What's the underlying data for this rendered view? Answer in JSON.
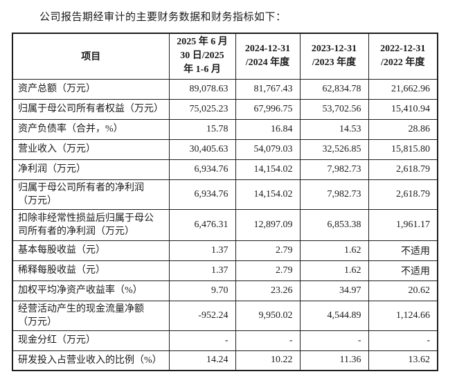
{
  "page": {
    "title": "公司报告期经审计的主要财务数据和财务指标如下："
  },
  "colors": {
    "text": "#1a1a1a",
    "border": "#1c1c1c",
    "background": "#ffffff"
  },
  "table": {
    "header": {
      "item_label": "项目",
      "periods": [
        {
          "lines": [
            "2025 年 6 月",
            "30 日/2025",
            "年 1-6 月"
          ]
        },
        {
          "lines": [
            "2024-12-31",
            "/2024 年度"
          ]
        },
        {
          "lines": [
            "2023-12-31",
            "/2023 年度"
          ]
        },
        {
          "lines": [
            "2022-12-31",
            "/2022 年度"
          ]
        }
      ]
    },
    "rows": [
      {
        "label": "资产总额（万元）",
        "values": [
          "89,078.63",
          "81,767.43",
          "62,834.78",
          "21,662.96"
        ]
      },
      {
        "label": "归属于母公司所有者权益（万元）",
        "values": [
          "75,025.23",
          "67,996.75",
          "53,702.56",
          "15,410.94"
        ]
      },
      {
        "label": "资产负债率（合并，%）",
        "values": [
          "15.78",
          "16.84",
          "14.53",
          "28.86"
        ]
      },
      {
        "label": "营业收入（万元）",
        "values": [
          "30,405.63",
          "54,079.03",
          "32,526.85",
          "15,815.80"
        ]
      },
      {
        "label": "净利润（万元）",
        "values": [
          "6,934.76",
          "14,154.02",
          "7,982.73",
          "2,618.79"
        ]
      },
      {
        "label": "归属于母公司所有者的净利润\n（万元）",
        "values": [
          "6,934.76",
          "14,154.02",
          "7,982.73",
          "2,618.79"
        ]
      },
      {
        "label": "扣除非经常性损益后归属于母公\n司所有者的净利润（万元）",
        "values": [
          "6,476.31",
          "12,897.09",
          "6,853.38",
          "1,961.17"
        ]
      },
      {
        "label": "基本每股收益（元）",
        "values": [
          "1.37",
          "2.79",
          "1.62",
          "不适用"
        ]
      },
      {
        "label": "稀释每股收益（元）",
        "values": [
          "1.37",
          "2.79",
          "1.62",
          "不适用"
        ]
      },
      {
        "label": "加权平均净资产收益率（%）",
        "values": [
          "9.70",
          "23.26",
          "34.97",
          "20.62"
        ]
      },
      {
        "label": "经营活动产生的现金流量净额\n（万元）",
        "values": [
          "-952.24",
          "9,950.02",
          "4,544.89",
          "1,124.66"
        ]
      },
      {
        "label": "现金分红（万元）",
        "values": [
          "-",
          "-",
          "-",
          "-"
        ]
      },
      {
        "label": "研发投入占营业收入的比例（%）",
        "values": [
          "14.24",
          "10.22",
          "11.36",
          "13.62"
        ]
      }
    ]
  }
}
